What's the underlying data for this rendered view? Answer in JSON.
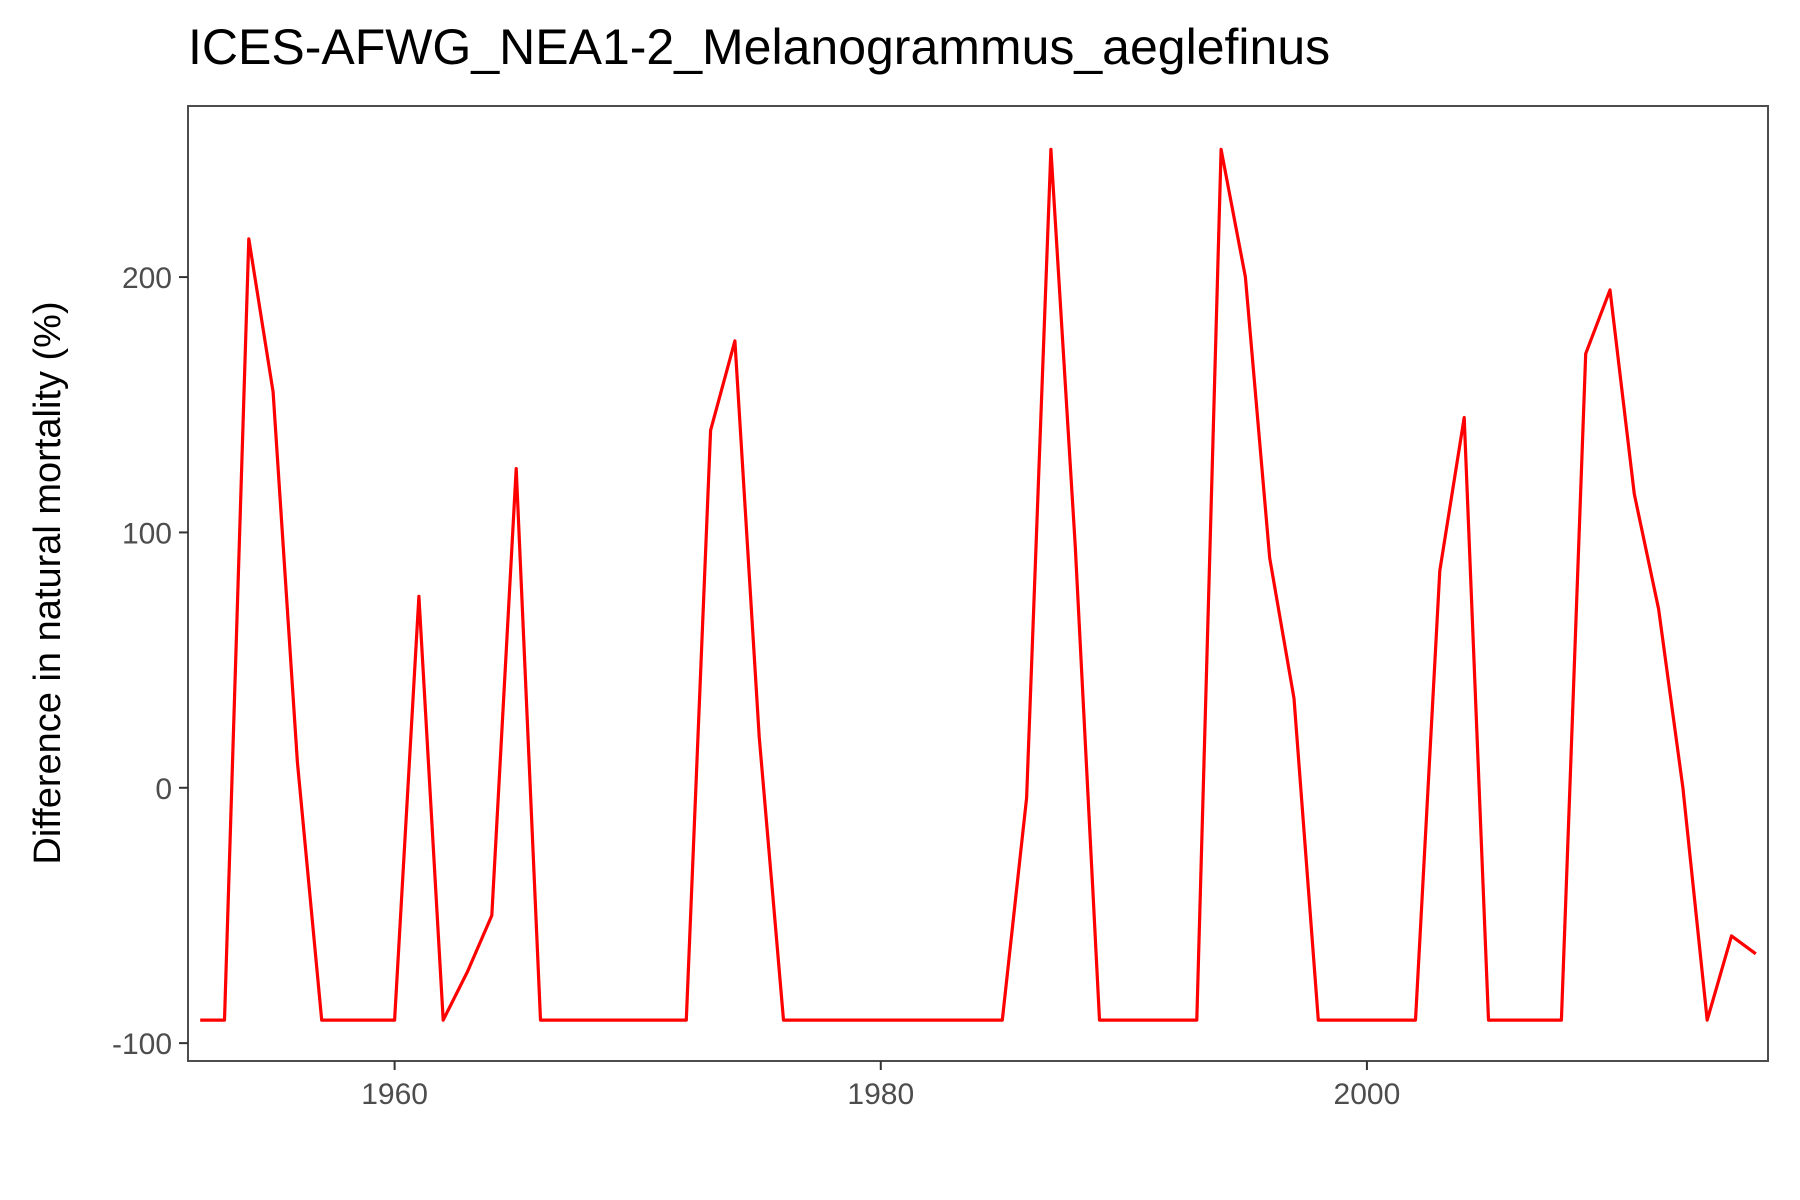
{
  "chart_data": {
    "type": "line",
    "title": "ICES-AFWG_NEA1-2_Melanogrammus_aeglefinus",
    "xlabel": "",
    "ylabel": "Difference in natural mortality (%)",
    "xlim": [
      1951.5,
      2016.5
    ],
    "ylim": [
      -107,
      267
    ],
    "x_ticks": [
      1960,
      1980,
      2000
    ],
    "y_ticks": [
      -100,
      0,
      100,
      200
    ],
    "grid": false,
    "line_color": "#ff0000",
    "series": [
      {
        "x": [
          1952,
          1953,
          1954,
          1955,
          1956,
          1957,
          1958,
          1959,
          1960,
          1961,
          1962,
          1963,
          1964,
          1965,
          1966,
          1967,
          1968,
          1969,
          1970,
          1971,
          1972,
          1973,
          1974,
          1975,
          1976,
          1977,
          1978,
          1979,
          1980,
          1981,
          1982,
          1983,
          1984,
          1985,
          1986,
          1987,
          1988,
          1989,
          1990,
          1991,
          1992,
          1993,
          1994,
          1995,
          1996,
          1997,
          1998,
          1999,
          2000,
          2001,
          2002,
          2003,
          2004,
          2005,
          2006,
          2007,
          2008,
          2009,
          2010,
          2011,
          2012,
          2013,
          2014,
          2015,
          2016
        ],
        "values": [
          -91,
          -91,
          215,
          155,
          10,
          -91,
          -91,
          -91,
          -91,
          75,
          -91,
          -72,
          -50,
          125,
          -91,
          -91,
          -91,
          -91,
          -91,
          -91,
          -91,
          140,
          175,
          20,
          -91,
          -91,
          -91,
          -91,
          -91,
          -91,
          -91,
          -91,
          -91,
          -91,
          -4,
          250,
          95,
          -91,
          -91,
          -91,
          -91,
          -91,
          250,
          200,
          90,
          35,
          -91,
          -91,
          -91,
          -91,
          -91,
          85,
          145,
          -91,
          -91,
          -91,
          -91,
          170,
          195,
          115,
          70,
          0,
          -91,
          -58,
          -65
        ]
      }
    ]
  }
}
